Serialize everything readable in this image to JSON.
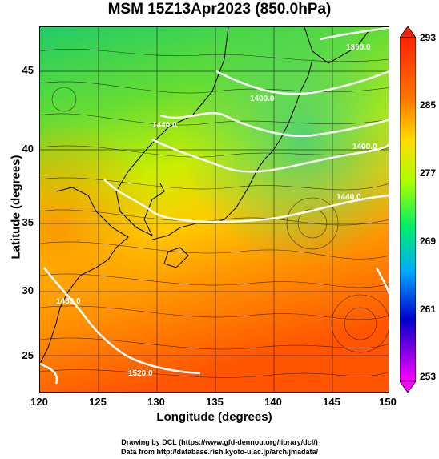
{
  "title": "MSM 15Z13Apr2023 (850.0hPa)",
  "map": {
    "xlabel": "Longitude (degrees)",
    "ylabel": "Latitude  (degrees)",
    "x_ticks": [
      "120",
      "125",
      "130",
      "135",
      "140",
      "145",
      "150"
    ],
    "y_ticks": [
      "45",
      "40",
      "35",
      "30",
      "25"
    ],
    "contour_labels": [
      "1360.0",
      "1400.0",
      "1400.0",
      "1440.0",
      "1440.0",
      "1480.0",
      "1520.0"
    ]
  },
  "colorbar": {
    "ticks": [
      "293",
      "285",
      "277",
      "269",
      "261",
      "253"
    ],
    "colors": [
      "#ff00ff",
      "#0000cc",
      "#00aaff",
      "#00ee66",
      "#aaff00",
      "#ffdd00",
      "#ff7700",
      "#ff2200"
    ]
  },
  "credits": {
    "line1": "Drawing by DCL (https://www.gfd-dennou.org/library/dcl/)",
    "line2": "Data from http://database.rish.kyoto-u.ac.jp/arch/jmadata/"
  }
}
